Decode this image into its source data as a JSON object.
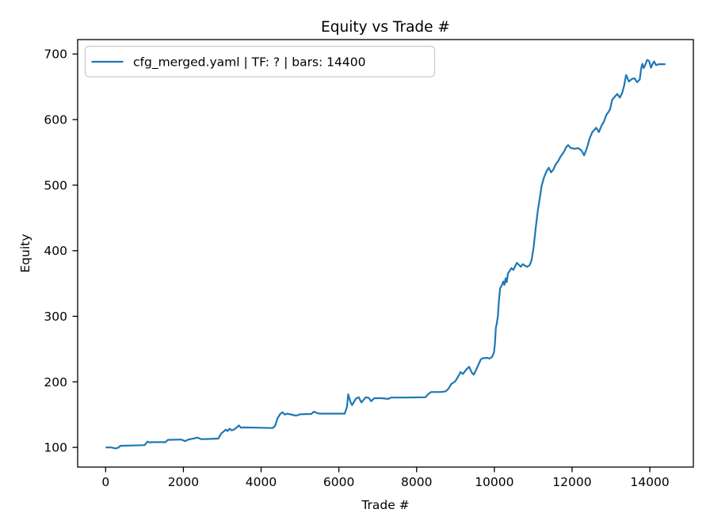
{
  "chart_data": {
    "type": "line",
    "title": "Equity vs Trade #",
    "xlabel": "Trade #",
    "ylabel": "Equity",
    "grid": false,
    "legend_position": "upper left",
    "line_color": "#1f77b4",
    "spine_color": "#000000",
    "legend_border_color": "#cccccc",
    "xlim": [
      -720,
      15120
    ],
    "ylim": [
      70,
      722
    ],
    "x_ticks": [
      0,
      2000,
      4000,
      6000,
      8000,
      10000,
      12000,
      14000
    ],
    "y_ticks": [
      100,
      200,
      300,
      400,
      500,
      600,
      700
    ],
    "series": [
      {
        "name": "cfg_merged.yaml | TF: ? | bars: 14400",
        "points": [
          [
            0,
            100
          ],
          [
            150,
            100
          ],
          [
            250,
            98.5
          ],
          [
            320,
            99.5
          ],
          [
            380,
            102.5
          ],
          [
            700,
            103
          ],
          [
            1000,
            103.5
          ],
          [
            1040,
            106
          ],
          [
            1080,
            109
          ],
          [
            1130,
            107.5
          ],
          [
            1200,
            108
          ],
          [
            1540,
            108
          ],
          [
            1600,
            111.5
          ],
          [
            1950,
            112
          ],
          [
            2040,
            109.5
          ],
          [
            2130,
            112
          ],
          [
            2300,
            114
          ],
          [
            2360,
            115
          ],
          [
            2460,
            112.5
          ],
          [
            2700,
            113
          ],
          [
            2900,
            113.5
          ],
          [
            2970,
            121
          ],
          [
            3030,
            124
          ],
          [
            3090,
            127
          ],
          [
            3140,
            125
          ],
          [
            3190,
            128.5
          ],
          [
            3240,
            126
          ],
          [
            3310,
            127.5
          ],
          [
            3380,
            131
          ],
          [
            3430,
            133.5
          ],
          [
            3480,
            130
          ],
          [
            3540,
            130.5
          ],
          [
            4000,
            130
          ],
          [
            4300,
            129.5
          ],
          [
            4360,
            133
          ],
          [
            4420,
            144
          ],
          [
            4490,
            151
          ],
          [
            4550,
            153.5
          ],
          [
            4610,
            150
          ],
          [
            4670,
            151.5
          ],
          [
            4900,
            148.5
          ],
          [
            5010,
            150.5
          ],
          [
            5290,
            151
          ],
          [
            5360,
            154.5
          ],
          [
            5460,
            152
          ],
          [
            5530,
            151.5
          ],
          [
            6150,
            151.5
          ],
          [
            6210,
            162
          ],
          [
            6240,
            181
          ],
          [
            6300,
            169
          ],
          [
            6340,
            164.5
          ],
          [
            6440,
            174.5
          ],
          [
            6510,
            176.5
          ],
          [
            6580,
            168.5
          ],
          [
            6690,
            176.5
          ],
          [
            6770,
            175.5
          ],
          [
            6830,
            170.5
          ],
          [
            6910,
            175
          ],
          [
            7100,
            175
          ],
          [
            7270,
            174
          ],
          [
            7340,
            176
          ],
          [
            7600,
            176
          ],
          [
            8230,
            176.5
          ],
          [
            8300,
            181.5
          ],
          [
            8370,
            184.5
          ],
          [
            8620,
            184.5
          ],
          [
            8750,
            185.5
          ],
          [
            8820,
            189.5
          ],
          [
            8890,
            196.5
          ],
          [
            8990,
            200.5
          ],
          [
            9090,
            210
          ],
          [
            9130,
            215
          ],
          [
            9190,
            212
          ],
          [
            9290,
            219.5
          ],
          [
            9350,
            223
          ],
          [
            9420,
            214
          ],
          [
            9470,
            211
          ],
          [
            9530,
            218
          ],
          [
            9590,
            226
          ],
          [
            9650,
            234
          ],
          [
            9700,
            236
          ],
          [
            9810,
            236.5
          ],
          [
            9880,
            235.5
          ],
          [
            9940,
            238
          ],
          [
            9990,
            245
          ],
          [
            10015,
            258
          ],
          [
            10040,
            283
          ],
          [
            10060,
            288
          ],
          [
            10090,
            300
          ],
          [
            10120,
            325
          ],
          [
            10150,
            343
          ],
          [
            10190,
            347
          ],
          [
            10230,
            353
          ],
          [
            10260,
            348
          ],
          [
            10290,
            358
          ],
          [
            10320,
            352
          ],
          [
            10350,
            365
          ],
          [
            10390,
            369
          ],
          [
            10440,
            373.5
          ],
          [
            10490,
            370.5
          ],
          [
            10540,
            377
          ],
          [
            10580,
            381.5
          ],
          [
            10630,
            378.5
          ],
          [
            10680,
            375.5
          ],
          [
            10730,
            379.5
          ],
          [
            10790,
            377
          ],
          [
            10850,
            375.5
          ],
          [
            10910,
            378
          ],
          [
            10960,
            386
          ],
          [
            11010,
            405
          ],
          [
            11060,
            432
          ],
          [
            11120,
            462
          ],
          [
            11170,
            480
          ],
          [
            11220,
            500
          ],
          [
            11280,
            512
          ],
          [
            11340,
            521
          ],
          [
            11400,
            526.5
          ],
          [
            11460,
            519.5
          ],
          [
            11520,
            524
          ],
          [
            11580,
            532
          ],
          [
            11640,
            536.5
          ],
          [
            11700,
            543
          ],
          [
            11790,
            551
          ],
          [
            11850,
            558
          ],
          [
            11900,
            561
          ],
          [
            11960,
            557
          ],
          [
            12060,
            555.5
          ],
          [
            12160,
            556.5
          ],
          [
            12240,
            553
          ],
          [
            12310,
            545.5
          ],
          [
            12390,
            558
          ],
          [
            12450,
            571
          ],
          [
            12520,
            581
          ],
          [
            12570,
            584
          ],
          [
            12620,
            587.5
          ],
          [
            12690,
            581
          ],
          [
            12760,
            591
          ],
          [
            12820,
            597
          ],
          [
            12880,
            607
          ],
          [
            12940,
            612
          ],
          [
            12980,
            616
          ],
          [
            13030,
            630
          ],
          [
            13100,
            635
          ],
          [
            13160,
            639
          ],
          [
            13230,
            633.5
          ],
          [
            13290,
            641
          ],
          [
            13340,
            652
          ],
          [
            13390,
            668
          ],
          [
            13420,
            664
          ],
          [
            13460,
            658
          ],
          [
            13540,
            662
          ],
          [
            13610,
            663
          ],
          [
            13670,
            657
          ],
          [
            13740,
            661
          ],
          [
            13780,
            679
          ],
          [
            13810,
            685
          ],
          [
            13840,
            678.5
          ],
          [
            13880,
            683
          ],
          [
            13930,
            691
          ],
          [
            13980,
            689.5
          ],
          [
            14030,
            679
          ],
          [
            14080,
            686
          ],
          [
            14110,
            688.5
          ],
          [
            14160,
            683
          ],
          [
            14230,
            684.5
          ],
          [
            14400,
            684.5
          ]
        ]
      }
    ]
  }
}
